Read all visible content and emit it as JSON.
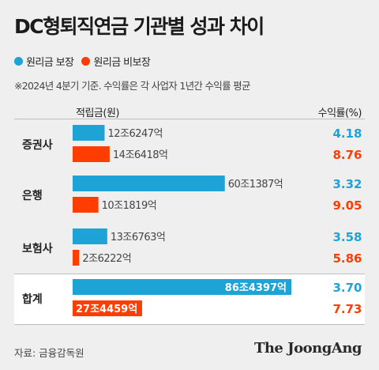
{
  "title": "DC형퇴직연금 기관별 성과 차이",
  "legend": [
    {
      "label": "원리금 보장",
      "color": "#1ea3d6"
    },
    {
      "label": "원리금 비보장",
      "color": "#ff3d00"
    }
  ],
  "note": "※2024년 4분기 기준. 수익률은 각 사업자 1년간 수익률 평균",
  "column_headers": {
    "amount": "적립금(원)",
    "rate": "수익률(%)"
  },
  "source": "자료: 금융감독원",
  "logo": "The JoongAng",
  "colors": {
    "guaranteed": "#1ea3d6",
    "non_guaranteed": "#ff3d00",
    "background": "#efefef",
    "total_background": "#ffffff"
  },
  "chart_data": {
    "type": "bar",
    "orientation": "horizontal",
    "title": "DC형퇴직연금 기관별 성과 차이",
    "unit": "조원",
    "categories": [
      "증권사",
      "은행",
      "보험사",
      "합계"
    ],
    "series": [
      {
        "name": "원리금 보장",
        "values": [
          12.6247,
          60.1387,
          13.6763,
          86.4397
        ],
        "labels": [
          "12조6247억",
          "60조1387억",
          "13조6763억",
          "86조4397억"
        ],
        "rates": [
          "4.18",
          "3.32",
          "3.58",
          "3.70"
        ]
      },
      {
        "name": "원리금 비보장",
        "values": [
          14.6418,
          10.1819,
          2.6222,
          27.4459
        ],
        "labels": [
          "14조6418억",
          "10조1819억",
          "2조6222억",
          "27조4459억"
        ],
        "rates": [
          "8.76",
          "9.05",
          "5.86",
          "7.73"
        ]
      }
    ]
  }
}
